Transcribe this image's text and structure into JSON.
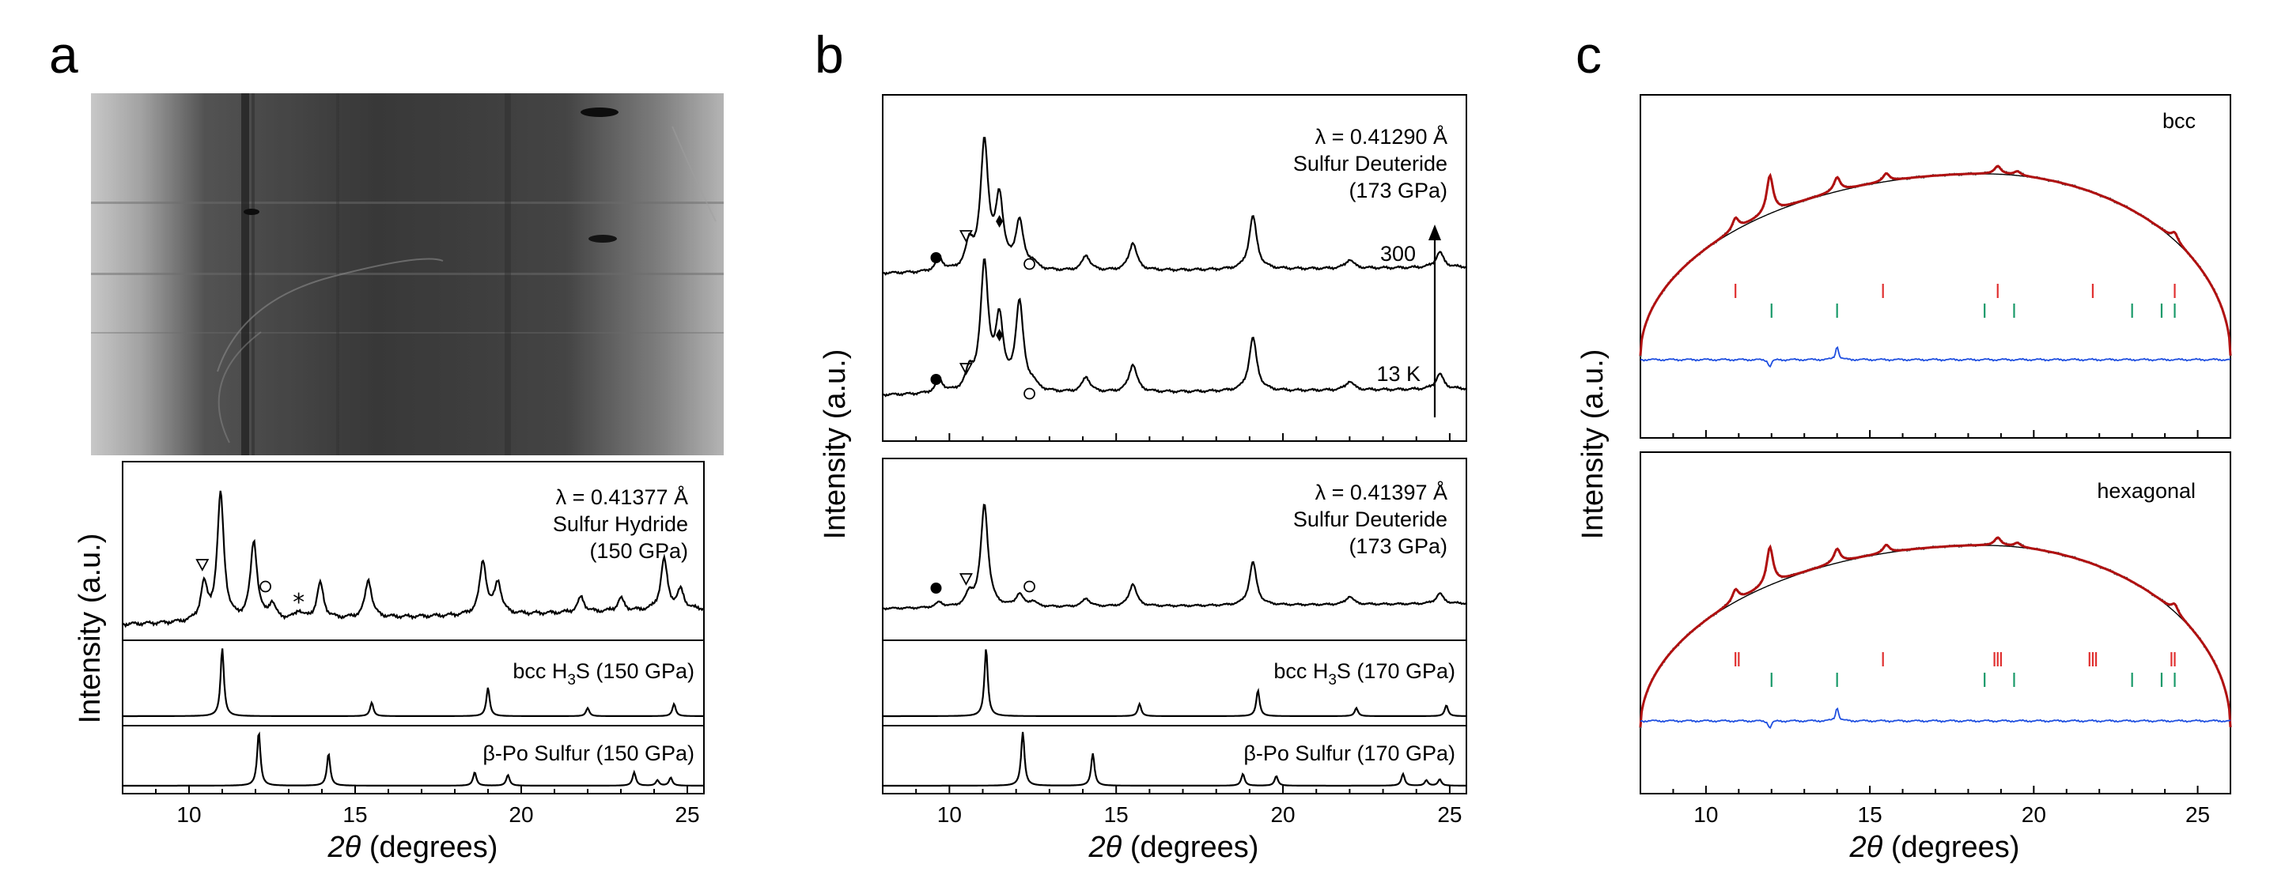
{
  "figure": {
    "panel_letters": [
      "a",
      "b",
      "c"
    ],
    "colors": {
      "fit": "#b01010",
      "background": "#000000",
      "residual": "#1f4fe0",
      "phase_red": "#e03030",
      "phase_green": "#1a9a6a",
      "trace": "#000000"
    }
  },
  "chart_data": [
    {
      "panel": "a",
      "type": "line",
      "xlabel_italic": "2θ",
      "xlabel_rest": " (degrees)",
      "ylabel": "Intensity (a.u.)",
      "xlim": [
        8,
        25.5
      ],
      "xticks": [
        10,
        15,
        20,
        25
      ],
      "xtick_labels": [
        "10",
        "15",
        "20",
        "25"
      ],
      "detector_image": true,
      "subplots": [
        {
          "name": "experiment",
          "annotations": [
            "λ = 0.41377 Å",
            "Sulfur Hydride",
            "(150 GPa)"
          ],
          "markers": [
            {
              "symbol": "triangle-open",
              "x": 10.4
            },
            {
              "symbol": "circle-open",
              "x": 12.3
            },
            {
              "symbol": "star",
              "x": 13.3
            }
          ],
          "peaks": [
            {
              "x": 10.45,
              "h": 0.28
            },
            {
              "x": 10.95,
              "h": 1.0
            },
            {
              "x": 11.95,
              "h": 0.62
            },
            {
              "x": 12.5,
              "h": 0.12
            },
            {
              "x": 13.3,
              "h": 0.06
            },
            {
              "x": 13.95,
              "h": 0.28
            },
            {
              "x": 15.4,
              "h": 0.3
            },
            {
              "x": 18.85,
              "h": 0.42
            },
            {
              "x": 19.3,
              "h": 0.25
            },
            {
              "x": 21.8,
              "h": 0.12
            },
            {
              "x": 23.0,
              "h": 0.1
            },
            {
              "x": 24.3,
              "h": 0.4
            },
            {
              "x": 24.8,
              "h": 0.15
            }
          ]
        },
        {
          "name": "bcc-reference",
          "label_prefix": "bcc H",
          "label_sub": "3",
          "label_suffix": "S (150 GPa)",
          "peaks": [
            {
              "x": 11.0,
              "h": 1.0
            },
            {
              "x": 15.5,
              "h": 0.2
            },
            {
              "x": 19.0,
              "h": 0.42
            },
            {
              "x": 22.0,
              "h": 0.12
            },
            {
              "x": 24.6,
              "h": 0.18
            }
          ]
        },
        {
          "name": "beta-po-reference",
          "label": "β-Po Sulfur (150 GPa)",
          "peaks": [
            {
              "x": 12.1,
              "h": 1.0
            },
            {
              "x": 14.2,
              "h": 0.6
            },
            {
              "x": 18.6,
              "h": 0.25
            },
            {
              "x": 19.6,
              "h": 0.2
            },
            {
              "x": 23.4,
              "h": 0.25
            },
            {
              "x": 24.1,
              "h": 0.1
            },
            {
              "x": 24.5,
              "h": 0.15
            }
          ]
        }
      ]
    },
    {
      "panel": "b",
      "type": "line",
      "xlabel_italic": "2θ",
      "xlabel_rest": " (degrees)",
      "ylabel": "Intensity (a.u.)",
      "xlim": [
        8,
        25.5
      ],
      "xticks": [
        10,
        15,
        20,
        25
      ],
      "xtick_labels": [
        "10",
        "15",
        "20",
        "25"
      ],
      "subplots": [
        {
          "name": "temperature-series",
          "annotations": [
            "λ = 0.41290 Å",
            "Sulfur Deuteride",
            "(173 GPa)"
          ],
          "series_labels": [
            "300",
            "13 K"
          ],
          "arrow": true,
          "series": [
            {
              "name": "300",
              "markers": [
                {
                  "symbol": "circle-filled",
                  "x": 9.6
                },
                {
                  "symbol": "triangle-open",
                  "x": 10.5
                },
                {
                  "symbol": "diamond",
                  "x": 11.5
                },
                {
                  "symbol": "circle-open",
                  "x": 12.4
                }
              ],
              "peaks": [
                {
                  "x": 9.7,
                  "h": 0.1
                },
                {
                  "x": 10.6,
                  "h": 0.2
                },
                {
                  "x": 11.05,
                  "h": 1.0
                },
                {
                  "x": 11.5,
                  "h": 0.55
                },
                {
                  "x": 12.1,
                  "h": 0.38
                },
                {
                  "x": 12.5,
                  "h": 0.05
                },
                {
                  "x": 14.1,
                  "h": 0.12
                },
                {
                  "x": 15.5,
                  "h": 0.22
                },
                {
                  "x": 19.1,
                  "h": 0.42
                },
                {
                  "x": 22.0,
                  "h": 0.07
                },
                {
                  "x": 24.7,
                  "h": 0.12
                }
              ]
            },
            {
              "name": "13 K",
              "markers": [
                {
                  "symbol": "circle-filled",
                  "x": 9.6
                },
                {
                  "symbol": "triangle-open",
                  "x": 10.5
                },
                {
                  "symbol": "diamond",
                  "x": 11.5
                },
                {
                  "symbol": "circle-open",
                  "x": 12.4
                }
              ],
              "peaks": [
                {
                  "x": 9.7,
                  "h": 0.1
                },
                {
                  "x": 10.6,
                  "h": 0.15
                },
                {
                  "x": 11.05,
                  "h": 1.0
                },
                {
                  "x": 11.5,
                  "h": 0.55
                },
                {
                  "x": 12.1,
                  "h": 0.7
                },
                {
                  "x": 12.5,
                  "h": 0.05
                },
                {
                  "x": 14.1,
                  "h": 0.12
                },
                {
                  "x": 15.5,
                  "h": 0.22
                },
                {
                  "x": 19.1,
                  "h": 0.42
                },
                {
                  "x": 22.0,
                  "h": 0.07
                },
                {
                  "x": 24.7,
                  "h": 0.12
                }
              ]
            }
          ]
        },
        {
          "name": "experiment",
          "annotations": [
            "λ = 0.41397 Å",
            "Sulfur Deuteride",
            "(173 GPa)"
          ],
          "markers": [
            {
              "symbol": "circle-filled",
              "x": 9.6
            },
            {
              "symbol": "triangle-open",
              "x": 10.5
            },
            {
              "symbol": "circle-open",
              "x": 12.4
            }
          ],
          "peaks": [
            {
              "x": 9.7,
              "h": 0.05
            },
            {
              "x": 10.6,
              "h": 0.12
            },
            {
              "x": 11.05,
              "h": 1.0
            },
            {
              "x": 12.1,
              "h": 0.12
            },
            {
              "x": 12.5,
              "h": 0.05
            },
            {
              "x": 14.1,
              "h": 0.08
            },
            {
              "x": 15.5,
              "h": 0.22
            },
            {
              "x": 19.1,
              "h": 0.42
            },
            {
              "x": 22.0,
              "h": 0.08
            },
            {
              "x": 24.7,
              "h": 0.1
            }
          ]
        },
        {
          "name": "bcc-reference",
          "label_prefix": "bcc H",
          "label_sub": "3",
          "label_suffix": "S (170 GPa)",
          "peaks": [
            {
              "x": 11.1,
              "h": 1.0
            },
            {
              "x": 15.7,
              "h": 0.18
            },
            {
              "x": 19.25,
              "h": 0.38
            },
            {
              "x": 22.2,
              "h": 0.12
            },
            {
              "x": 24.9,
              "h": 0.16
            }
          ]
        },
        {
          "name": "beta-po-reference",
          "label": "β-Po Sulfur (170 GPa)",
          "peaks": [
            {
              "x": 12.2,
              "h": 1.0
            },
            {
              "x": 14.3,
              "h": 0.6
            },
            {
              "x": 18.8,
              "h": 0.22
            },
            {
              "x": 19.8,
              "h": 0.18
            },
            {
              "x": 23.6,
              "h": 0.22
            },
            {
              "x": 24.3,
              "h": 0.1
            },
            {
              "x": 24.7,
              "h": 0.12
            }
          ]
        }
      ]
    },
    {
      "panel": "c",
      "type": "line",
      "xlabel_italic": "2θ",
      "xlabel_rest": " (degrees)",
      "ylabel": "Intensity (a.u.)",
      "xlim": [
        8,
        26
      ],
      "xticks": [
        10,
        15,
        20,
        25
      ],
      "xtick_labels": [
        "10",
        "15",
        "20",
        "25"
      ],
      "subplots": [
        {
          "name": "bcc",
          "label": "bcc",
          "background_start": 8.0,
          "background_peak_x": 18.5,
          "background_end": 26.0,
          "peaks": [
            {
              "x": 10.9,
              "h": 0.12
            },
            {
              "x": 11.95,
              "h": 0.38
            },
            {
              "x": 14.0,
              "h": 0.14
            },
            {
              "x": 15.5,
              "h": 0.08
            },
            {
              "x": 18.9,
              "h": 0.08
            },
            {
              "x": 19.5,
              "h": 0.04
            },
            {
              "x": 24.3,
              "h": 0.08
            }
          ],
          "ticks_red": [
            10.9,
            15.4,
            18.9,
            21.8,
            24.3
          ],
          "ticks_green": [
            12.0,
            14.0,
            18.5,
            19.4,
            23.0,
            23.9,
            24.3
          ]
        },
        {
          "name": "hexagonal",
          "label": "hexagonal",
          "background_start": 8.0,
          "background_peak_x": 18.5,
          "background_end": 26.0,
          "peaks": [
            {
              "x": 10.9,
              "h": 0.12
            },
            {
              "x": 11.95,
              "h": 0.38
            },
            {
              "x": 14.0,
              "h": 0.14
            },
            {
              "x": 15.5,
              "h": 0.08
            },
            {
              "x": 18.9,
              "h": 0.08
            },
            {
              "x": 19.5,
              "h": 0.04
            },
            {
              "x": 24.3,
              "h": 0.08
            }
          ],
          "ticks_red": [
            10.9,
            11.0,
            15.4,
            18.8,
            18.9,
            19.0,
            21.7,
            21.8,
            21.9,
            24.2,
            24.3
          ],
          "ticks_green": [
            12.0,
            14.0,
            18.5,
            19.4,
            23.0,
            23.9,
            24.3
          ]
        }
      ]
    }
  ]
}
